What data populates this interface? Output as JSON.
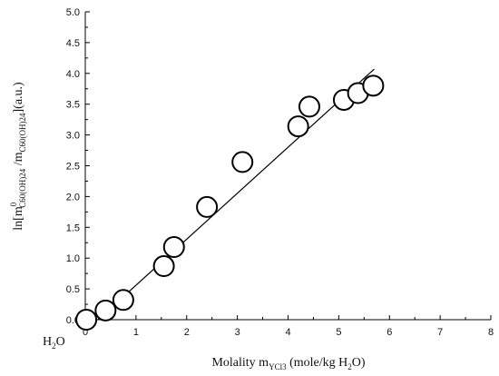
{
  "chart_data": {
    "type": "scatter",
    "xlabel": {
      "main": "Molality m",
      "sub": "YCl3",
      "unit_open": " (mole/kg H",
      "unit_sub": "2",
      "unit_close": "O)"
    },
    "ylabel": {
      "prefix": "ln[m",
      "sup": "0",
      "sub1": "C60(OH)24",
      "mid": " /m",
      "sub2": "C60(OH)24",
      "suffix": "](a.u.)"
    },
    "x_origin_label": {
      "main": "H",
      "sub": "2",
      "tail": "O"
    },
    "xlim": [
      0,
      8
    ],
    "ylim": [
      0,
      5
    ],
    "x_ticks": [
      0,
      1,
      2,
      3,
      4,
      5,
      6,
      7,
      8
    ],
    "y_ticks": [
      "0.0",
      "0.5",
      "1.0",
      "1.5",
      "2.0",
      "2.5",
      "3.0",
      "3.5",
      "4.0",
      "4.5",
      "5.0"
    ],
    "points": [
      {
        "x": 0.02,
        "y": 0.0
      },
      {
        "x": 0.4,
        "y": 0.15
      },
      {
        "x": 0.75,
        "y": 0.32
      },
      {
        "x": 1.55,
        "y": 0.87
      },
      {
        "x": 1.75,
        "y": 1.18
      },
      {
        "x": 2.4,
        "y": 1.83
      },
      {
        "x": 3.1,
        "y": 2.56
      },
      {
        "x": 4.2,
        "y": 3.14
      },
      {
        "x": 4.42,
        "y": 3.46
      },
      {
        "x": 5.1,
        "y": 3.57
      },
      {
        "x": 5.38,
        "y": 3.68
      },
      {
        "x": 5.68,
        "y": 3.8
      }
    ],
    "fit_line": [
      {
        "x": 0.25,
        "y": 0.0
      },
      {
        "x": 5.7,
        "y": 4.07
      }
    ],
    "colors": {
      "axis": "#000000",
      "marker": "#000000",
      "line": "#000000",
      "background": "#ffffff"
    },
    "grid": false,
    "legend": "none"
  }
}
